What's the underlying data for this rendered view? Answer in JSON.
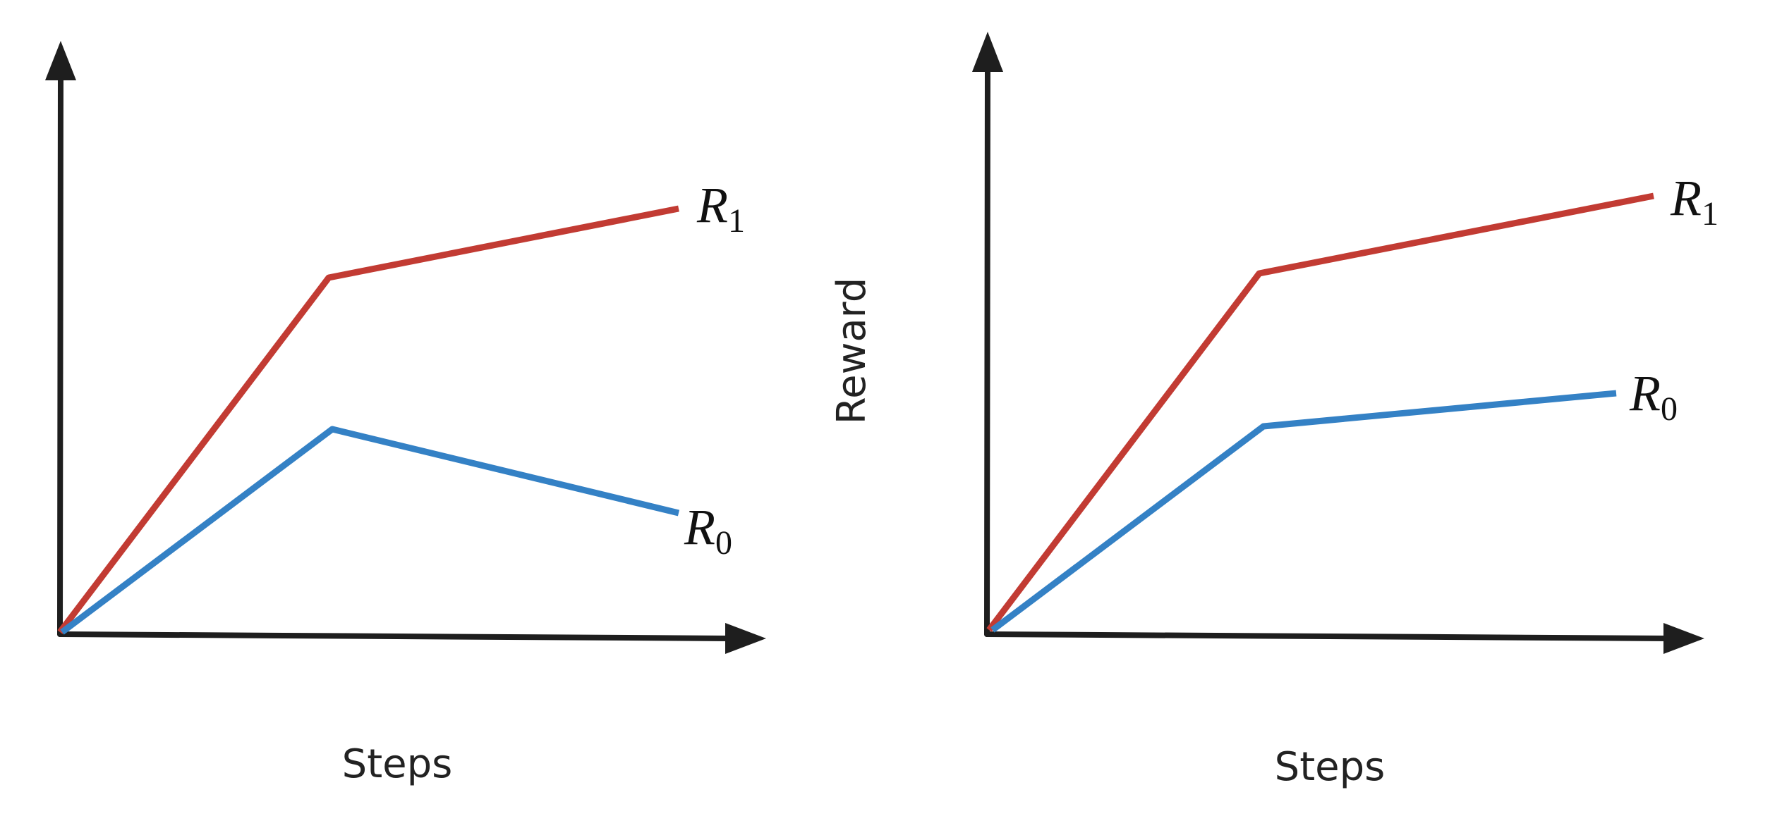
{
  "left_panel": {
    "x_label": "Steps",
    "curves": [
      {
        "symbol": "R",
        "subscript": "1"
      },
      {
        "symbol": "R",
        "subscript": "0"
      }
    ]
  },
  "y_label": "Reward",
  "right_panel": {
    "x_label": "Steps",
    "curves": [
      {
        "symbol": "R",
        "subscript": "1"
      },
      {
        "symbol": "R",
        "subscript": "0"
      }
    ]
  }
}
